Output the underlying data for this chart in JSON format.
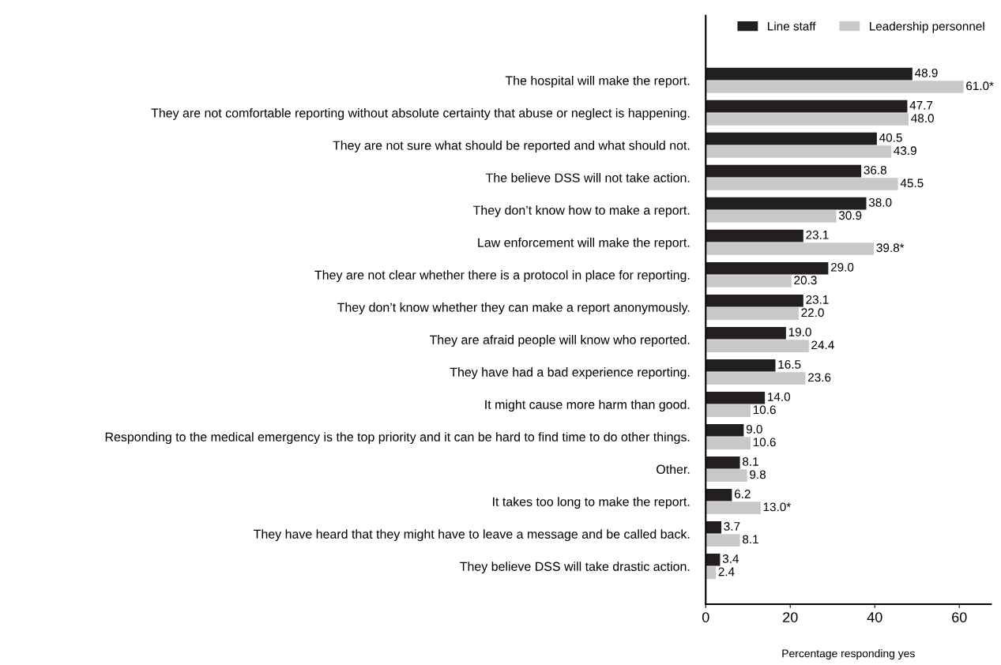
{
  "chart_data": {
    "type": "bar",
    "orientation": "horizontal",
    "xlabel": "Percentage responding yes",
    "categories": [
      "The hospital will make the report.",
      "They are not comfortable reporting without absolute certainty that abuse or neglect is happening.",
      "They are not sure what should be reported and what should not.",
      "The believe DSS will not take action.",
      "They don’t know how to make a report.",
      "Law enforcement will make the report.",
      "They are not clear whether there is a protocol in place for reporting.",
      "They don’t know whether they can make a report anonymously.",
      "They are afraid people will know who reported.",
      "They have had a bad experience reporting.",
      "It might cause more harm than good.",
      "Responding to the medical emergency is the top priority and it can be hard to find time to do other things.",
      "Other.",
      "It takes too long to make the report.",
      "They have heard that they might have to leave a message and be called back.",
      "They believe DSS will take drastic action."
    ],
    "series": [
      {
        "name": "Line staff",
        "color": "#231f20",
        "values": [
          48.9,
          47.7,
          40.5,
          36.8,
          38.0,
          23.1,
          29.0,
          23.1,
          19.0,
          16.5,
          14.0,
          9.0,
          8.1,
          6.2,
          3.7,
          3.4
        ],
        "value_labels": [
          "48.9",
          "47.7",
          "40.5",
          "36.8",
          "38.0",
          "23.1",
          "29.0",
          "23.1",
          "19.0",
          "16.5",
          "14.0",
          "9.0",
          "8.1",
          "6.2",
          "3.7",
          "3.4"
        ]
      },
      {
        "name": "Leadership personnel",
        "color": "#c8c8c8",
        "values": [
          61.0,
          48.0,
          43.9,
          45.5,
          30.9,
          39.8,
          20.3,
          22.0,
          24.4,
          23.6,
          10.6,
          10.6,
          9.8,
          13.0,
          8.1,
          2.4
        ],
        "value_labels": [
          "61.0*",
          "48.0",
          "43.9",
          "45.5",
          "30.9",
          "39.8*",
          "20.3",
          "22.0",
          "24.4",
          "23.6",
          "10.6",
          "10.6",
          "9.8",
          "13.0*",
          "8.1",
          "2.4"
        ]
      }
    ],
    "xlim": [
      0,
      67.5
    ],
    "xticks": [
      0,
      20,
      40,
      60
    ],
    "grid": false,
    "legend": "top right"
  }
}
